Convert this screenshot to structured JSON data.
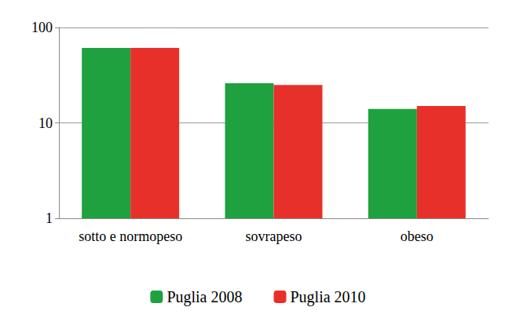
{
  "chart_data": {
    "type": "bar",
    "categories": [
      "sotto e normopeso",
      "sovrapeso",
      "obeso"
    ],
    "series": [
      {
        "name": "Puglia 2008",
        "color": "#1fa13f",
        "values": [
          61,
          26,
          14
        ]
      },
      {
        "name": "Puglia 2010",
        "color": "#e8302a",
        "values": [
          61,
          25,
          15
        ]
      }
    ],
    "ylim": [
      1,
      100
    ],
    "yticks": [
      1,
      10,
      100
    ],
    "log": "y",
    "grid": true,
    "legend": "bottom"
  }
}
